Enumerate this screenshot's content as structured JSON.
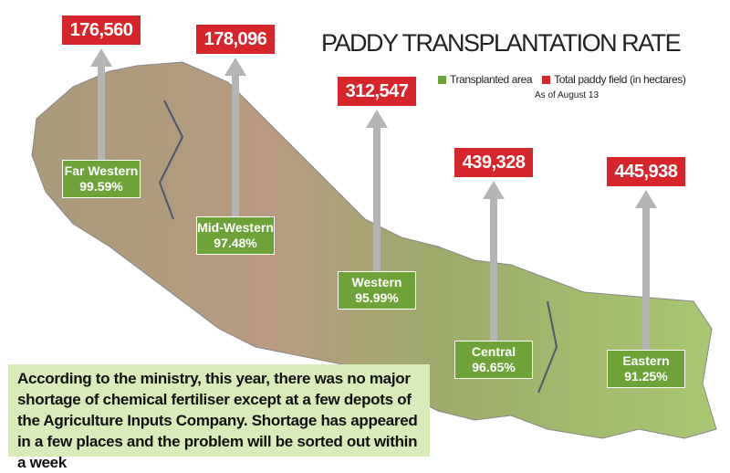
{
  "chart_data": {
    "type": "bar",
    "title": "PADDY TRANSPLANTATION RATE",
    "legend": [
      {
        "label": "Transplanted area",
        "color": "#6ea33a"
      },
      {
        "label": "Total paddy field (in hectares)",
        "color": "#d7262b"
      }
    ],
    "legend_placement": "top-right",
    "subtitle": "As of August 13",
    "categories": [
      "Far Western",
      "Mid-Western",
      "Western",
      "Central",
      "Eastern"
    ],
    "total_labels": [
      "176,560",
      "178,096",
      "312,547",
      "439,328",
      "445,938"
    ],
    "totals": [
      176560,
      178096,
      312547,
      439328,
      445938
    ],
    "rate_labels": [
      "99.59%",
      "97.48%",
      "95.99%",
      "96.65%",
      "91.25%"
    ],
    "rates": [
      99.59,
      97.48,
      95.99,
      96.65,
      91.25
    ]
  },
  "note": "According to the ministry, this year, there was no major shortage of chemical fertiliser except at a few depots of the Agriculture Inputs Company.  Shortage has appeared in a few places and the problem will be sorted out within a week"
}
